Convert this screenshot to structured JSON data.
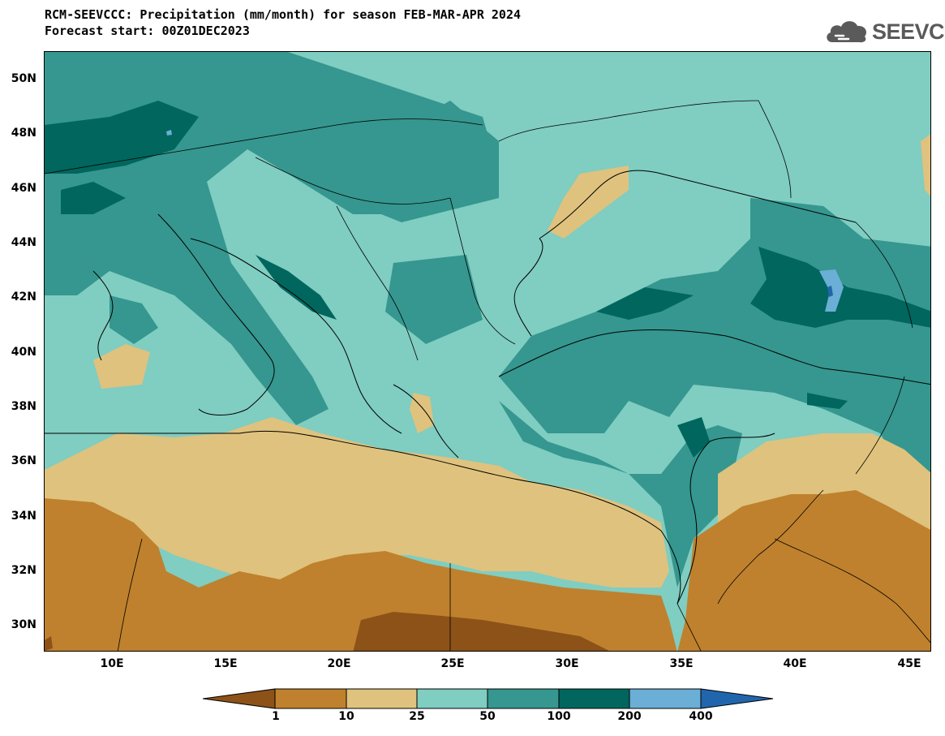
{
  "header": {
    "title_line1": "RCM-SEEVCCC: Precipitation (mm/month) for season FEB-MAR-APR 2024",
    "title_line2": "Forecast start: 00Z01DEC2023"
  },
  "logo": {
    "text": "SEEVCCC",
    "icon": "cloud-icon"
  },
  "map": {
    "lat_labels": [
      "50N",
      "48N",
      "46N",
      "44N",
      "42N",
      "40N",
      "38N",
      "36N",
      "34N",
      "32N",
      "30N"
    ],
    "lon_labels": [
      "10E",
      "15E",
      "20E",
      "25E",
      "30E",
      "35E",
      "40E",
      "45E"
    ],
    "lat_range": [
      29,
      51
    ],
    "lon_range": [
      7,
      46
    ],
    "colors": {
      "lt1": "#8c5218",
      "c1_10": "#bf812d",
      "c10_25": "#dfc27d",
      "c25_50": "#80cdc1",
      "c50_100": "#35978f",
      "c100_200": "#01665e",
      "c200_400": "#6baed6",
      "gt400": "#2166ac"
    }
  },
  "colorbar": {
    "labels": [
      "1",
      "10",
      "25",
      "50",
      "100",
      "200",
      "400"
    ],
    "colors": [
      "#8c5218",
      "#bf812d",
      "#dfc27d",
      "#80cdc1",
      "#35978f",
      "#01665e",
      "#6baed6",
      "#2166ac"
    ]
  }
}
